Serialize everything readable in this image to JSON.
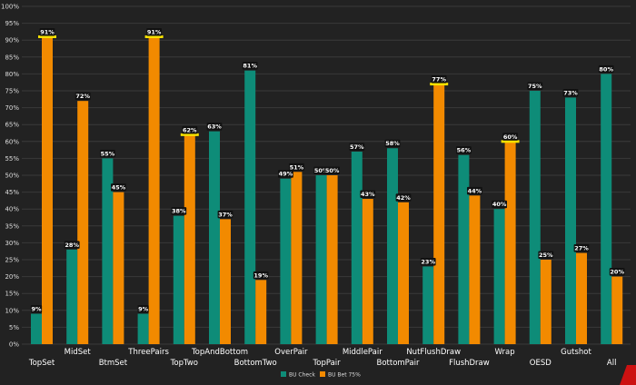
{
  "chart_data": {
    "type": "bar",
    "categories": [
      "TopSet",
      "MidSet",
      "BtmSet",
      "ThreePairs",
      "TopTwo",
      "TopAndBottom",
      "BottomTwo",
      "OverPair",
      "TopPair",
      "MiddlePair",
      "BottomPair",
      "NutFlushDraw",
      "FlushDraw",
      "Wrap",
      "OESD",
      "Gutshot",
      "All"
    ],
    "series": [
      {
        "name": "BU Check",
        "values": [
          9,
          28,
          55,
          9,
          38,
          63,
          81,
          49,
          50,
          57,
          58,
          23,
          56,
          40,
          75,
          73,
          80
        ]
      },
      {
        "name": "BU Bet 75%",
        "values": [
          91,
          72,
          45,
          91,
          62,
          37,
          19,
          51,
          50,
          43,
          42,
          77,
          44,
          60,
          25,
          27,
          20
        ]
      }
    ],
    "data_labels": {
      "BU Check": [
        "9%",
        "28%",
        "55%",
        "9%",
        "38%",
        "63%",
        "81%",
        "49%",
        "50%",
        "57%",
        "58%",
        "23%",
        "56%",
        "40%",
        "75%",
        "73%",
        "80%"
      ],
      "BU Bet 75%": [
        "91%",
        "72%",
        "45%",
        "91%",
        "62%",
        "37%",
        "19%",
        "51%",
        "50%",
        "43%",
        "42%",
        "77%",
        "44%",
        "60%",
        "25%",
        "27%",
        "20%"
      ]
    },
    "highlighted_categories": [
      "TopSet",
      "ThreePairs",
      "TopTwo",
      "NutFlushDraw",
      "Wrap"
    ],
    "y_ticks": [
      "0%",
      "5%",
      "10%",
      "15%",
      "20%",
      "25%",
      "30%",
      "35%",
      "40%",
      "45%",
      "50%",
      "55%",
      "60%",
      "65%",
      "70%",
      "75%",
      "80%",
      "85%",
      "90%",
      "95%",
      "100%"
    ],
    "ylim": [
      0,
      100
    ],
    "grid": true,
    "legend_position": "bottom-center",
    "title": "",
    "xlabel": "",
    "ylabel": ""
  },
  "colors": {
    "background": "#222222",
    "gridline": "#3a3a3a",
    "check": "#0e8c78",
    "bet": "#f28a00",
    "highlight": "#f5e100",
    "corner_logo": "#cc1111"
  }
}
